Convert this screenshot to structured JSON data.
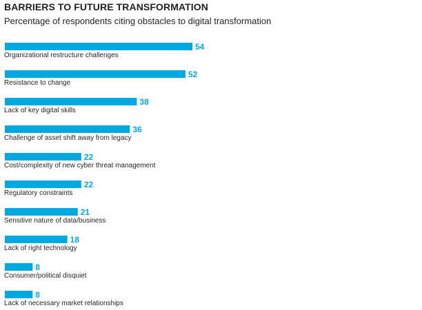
{
  "chart_data": {
    "type": "bar",
    "orientation": "horizontal",
    "title": "BARRIERS TO FUTURE TRANSFORMATION",
    "subtitle": "Percentage of respondents citing obstacles to digital transformation",
    "categories": [
      "Organizational restructure challenges",
      "Resistance to change",
      "Lack of key digital skills",
      "Challenge of asset shift away from legacy",
      "Cost/complexity of new cyber threat management",
      "Regulatory constraints",
      "Sensitive nature of data/business",
      "Lack of right technology",
      "Consumer/political disquiet",
      "Lack of necessary market relationships"
    ],
    "values": [
      54,
      52,
      38,
      36,
      22,
      22,
      21,
      18,
      8,
      8
    ],
    "xlim": [
      0,
      54
    ],
    "bar_color": "#00a9e0",
    "label_color": "#00a9e0",
    "grid": false,
    "legend": false
  }
}
